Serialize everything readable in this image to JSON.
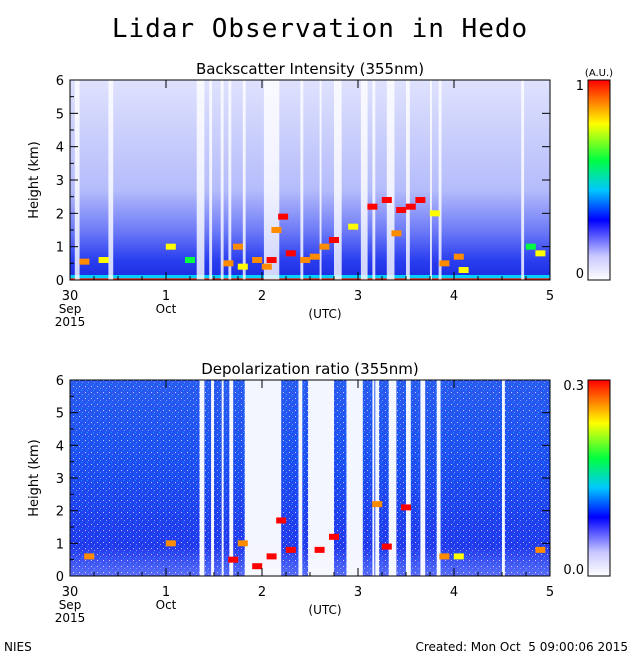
{
  "title": "Lidar Observation in Hedo",
  "chart_data": [
    {
      "type": "heatmap",
      "title": "Backscatter Intensity (355nm)",
      "ylabel": "Height (km)",
      "xlabel": "(UTC)",
      "ylim": [
        0,
        6
      ],
      "xlim": [
        0,
        5
      ],
      "yticks": [
        "0",
        "1",
        "2",
        "3",
        "4",
        "5",
        "6"
      ],
      "xticks": [
        "30",
        "1",
        "2",
        "3",
        "4",
        "5"
      ],
      "xsub": [
        "Sep",
        "Oct",
        "",
        "",
        "",
        ""
      ],
      "year": "2015",
      "colorbar": {
        "unit": "(A.U.)",
        "min_label": "0",
        "max_label": "1"
      },
      "aerosol_layers": [
        {
          "x": 0.15,
          "y": 0.55,
          "level": 0.9
        },
        {
          "x": 0.35,
          "y": 0.6,
          "level": 0.8
        },
        {
          "x": 1.05,
          "y": 1.0,
          "level": 0.8
        },
        {
          "x": 1.25,
          "y": 0.6,
          "level": 0.7
        },
        {
          "x": 1.65,
          "y": 0.5,
          "level": 0.9
        },
        {
          "x": 1.75,
          "y": 1.0,
          "level": 0.9
        },
        {
          "x": 1.8,
          "y": 0.4,
          "level": 0.8
        },
        {
          "x": 1.95,
          "y": 0.6,
          "level": 0.9
        },
        {
          "x": 2.05,
          "y": 0.4,
          "level": 0.9
        },
        {
          "x": 2.1,
          "y": 0.6,
          "level": 1.0
        },
        {
          "x": 2.15,
          "y": 1.5,
          "level": 0.9
        },
        {
          "x": 2.22,
          "y": 1.9,
          "level": 1.0
        },
        {
          "x": 2.3,
          "y": 0.8,
          "level": 1.0
        },
        {
          "x": 2.45,
          "y": 0.6,
          "level": 0.9
        },
        {
          "x": 2.55,
          "y": 0.7,
          "level": 0.9
        },
        {
          "x": 2.65,
          "y": 1.0,
          "level": 0.9
        },
        {
          "x": 2.75,
          "y": 1.2,
          "level": 1.0
        },
        {
          "x": 2.95,
          "y": 1.6,
          "level": 0.8
        },
        {
          "x": 3.15,
          "y": 2.2,
          "level": 1.0
        },
        {
          "x": 3.3,
          "y": 2.4,
          "level": 1.0
        },
        {
          "x": 3.4,
          "y": 1.4,
          "level": 0.9
        },
        {
          "x": 3.45,
          "y": 2.1,
          "level": 1.0
        },
        {
          "x": 3.55,
          "y": 2.2,
          "level": 1.0
        },
        {
          "x": 3.65,
          "y": 2.4,
          "level": 1.0
        },
        {
          "x": 3.8,
          "y": 2.0,
          "level": 0.8
        },
        {
          "x": 3.9,
          "y": 0.5,
          "level": 0.9
        },
        {
          "x": 4.05,
          "y": 0.7,
          "level": 0.9
        },
        {
          "x": 4.1,
          "y": 0.3,
          "level": 0.8
        },
        {
          "x": 4.8,
          "y": 1.0,
          "level": 0.7
        },
        {
          "x": 4.9,
          "y": 0.8,
          "level": 0.8
        }
      ],
      "no_data_intervals": [
        [
          0.05,
          0.1
        ],
        [
          0.4,
          0.45
        ],
        [
          1.32,
          1.4
        ],
        [
          1.45,
          1.48
        ],
        [
          1.57,
          1.6
        ],
        [
          1.65,
          1.68
        ],
        [
          1.8,
          1.83
        ],
        [
          2.02,
          2.18
        ],
        [
          2.4,
          2.43
        ],
        [
          2.6,
          2.62
        ],
        [
          2.75,
          2.83
        ],
        [
          3.03,
          3.1
        ],
        [
          3.15,
          3.18
        ],
        [
          3.3,
          3.38
        ],
        [
          3.5,
          3.54
        ],
        [
          3.75,
          3.77
        ],
        [
          3.84,
          3.87
        ],
        [
          4.7,
          4.73
        ]
      ]
    },
    {
      "type": "heatmap",
      "title": "Depolarization ratio (355nm)",
      "ylabel": "Height (km)",
      "xlabel": "(UTC)",
      "ylim": [
        0,
        6
      ],
      "xlim": [
        0,
        5
      ],
      "yticks": [
        "0",
        "1",
        "2",
        "3",
        "4",
        "5",
        "6"
      ],
      "xticks": [
        "30",
        "1",
        "2",
        "3",
        "4",
        "5"
      ],
      "xsub": [
        "Sep",
        "Oct",
        "",
        "",
        "",
        ""
      ],
      "year": "2015",
      "colorbar": {
        "unit": "",
        "min_label": "0.0",
        "max_label": "0.3"
      },
      "aerosol_layers": [
        {
          "x": 0.2,
          "y": 0.6,
          "level": 0.9
        },
        {
          "x": 1.05,
          "y": 1.0,
          "level": 0.9
        },
        {
          "x": 1.7,
          "y": 0.5,
          "level": 1.0
        },
        {
          "x": 1.8,
          "y": 1.0,
          "level": 0.9
        },
        {
          "x": 1.95,
          "y": 0.3,
          "level": 1.0
        },
        {
          "x": 2.1,
          "y": 0.6,
          "level": 1.0
        },
        {
          "x": 2.2,
          "y": 1.7,
          "level": 1.0
        },
        {
          "x": 2.3,
          "y": 0.8,
          "level": 1.0
        },
        {
          "x": 2.6,
          "y": 0.8,
          "level": 1.0
        },
        {
          "x": 2.75,
          "y": 1.2,
          "level": 1.0
        },
        {
          "x": 3.2,
          "y": 2.2,
          "level": 0.9
        },
        {
          "x": 3.3,
          "y": 0.9,
          "level": 1.0
        },
        {
          "x": 3.5,
          "y": 2.1,
          "level": 1.0
        },
        {
          "x": 3.9,
          "y": 0.6,
          "level": 0.9
        },
        {
          "x": 4.05,
          "y": 0.6,
          "level": 0.8
        },
        {
          "x": 4.9,
          "y": 0.8,
          "level": 0.9
        }
      ],
      "no_data_intervals": [
        [
          1.35,
          1.4
        ],
        [
          1.47,
          1.5
        ],
        [
          1.58,
          1.6
        ],
        [
          1.66,
          1.7
        ],
        [
          1.82,
          2.2
        ],
        [
          2.38,
          2.42
        ],
        [
          2.48,
          2.75
        ],
        [
          2.88,
          3.05
        ],
        [
          3.15,
          3.17
        ],
        [
          3.18,
          3.22
        ],
        [
          3.32,
          3.4
        ],
        [
          3.5,
          3.55
        ],
        [
          3.65,
          3.7
        ],
        [
          3.82,
          3.86
        ],
        [
          4.5,
          4.53
        ]
      ]
    }
  ],
  "footer": {
    "left": "NIES",
    "right": "Created: Mon Oct  5 09:00:06 2015"
  }
}
